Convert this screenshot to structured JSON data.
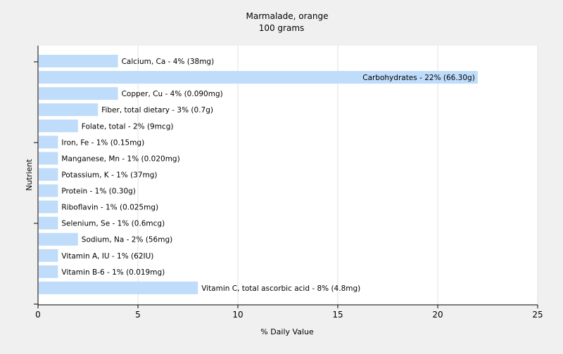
{
  "chart_data": {
    "type": "bar",
    "orientation": "horizontal",
    "title": "Marmalade, orange",
    "subtitle": "100 grams",
    "xlabel": "% Daily Value",
    "ylabel": "Nutrient",
    "xlim": [
      0,
      25
    ],
    "xticks": [
      0,
      5,
      10,
      15,
      20,
      25
    ],
    "grid": true,
    "bar_color": "#bfdcfb",
    "background_color": "#f0f0f0",
    "plot_background_color": "#ffffff",
    "gridline_color": "#e2e2e2",
    "categories": [
      "Calcium, Ca",
      "Carbohydrates",
      "Copper, Cu",
      "Fiber, total dietary",
      "Folate, total",
      "Iron, Fe",
      "Manganese, Mn",
      "Potassium, K",
      "Protein",
      "Riboflavin",
      "Selenium, Se",
      "Sodium, Na",
      "Vitamin A, IU",
      "Vitamin B-6",
      "Vitamin C, total ascorbic acid"
    ],
    "values": [
      4,
      22,
      4,
      3,
      2,
      1,
      1,
      1,
      1,
      1,
      1,
      2,
      1,
      1,
      8
    ],
    "labels": [
      "Calcium, Ca - 4% (38mg)",
      "Carbohydrates - 22% (66.30g)",
      "Copper, Cu - 4% (0.090mg)",
      "Fiber, total dietary - 3% (0.7g)",
      "Folate, total - 2% (9mcg)",
      "Iron, Fe - 1% (0.15mg)",
      "Manganese, Mn - 1% (0.020mg)",
      "Potassium, K - 1% (37mg)",
      "Protein - 1% (0.30g)",
      "Riboflavin - 1% (0.025mg)",
      "Selenium, Se - 1% (0.6mcg)",
      "Sodium, Na - 2% (56mg)",
      "Vitamin A, IU - 1% (62IU)",
      "Vitamin B-6 - 1% (0.019mg)",
      "Vitamin C, total ascorbic acid - 8% (4.8mg)"
    ]
  }
}
